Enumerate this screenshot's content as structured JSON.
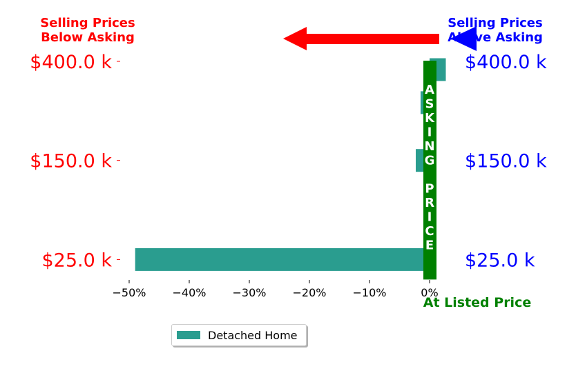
{
  "chart_data": {
    "type": "bar",
    "orientation": "horizontal",
    "title": "",
    "xlabel": "",
    "ylabel": "",
    "xlim": [
      -50,
      0
    ],
    "x_ticks": [
      -50,
      -40,
      -30,
      -20,
      -10,
      0
    ],
    "x_tick_labels": [
      "−50%",
      "−40%",
      "−30%",
      "−20%",
      "−10%",
      "0%"
    ],
    "y_ticks": [
      {
        "label": "$400.0 k",
        "row": 0
      },
      {
        "label": "$150.0 k",
        "row": 3
      },
      {
        "label": "$25.0 k",
        "row": 6
      }
    ],
    "series": [
      {
        "name": "Detached Home",
        "color": "#2a9d8f",
        "bars": [
          {
            "row": 0.25,
            "value": 2.7
          },
          {
            "row": 1.25,
            "value": -1.5
          },
          {
            "row": 3.0,
            "value": -2.3
          },
          {
            "row": 6.0,
            "value": -49.0
          }
        ]
      }
    ],
    "legend": {
      "position": "bottom-left",
      "entries": [
        "Detached Home"
      ]
    },
    "grid": false,
    "annotations": {
      "below_label": "Selling Prices\nBelow Asking",
      "above_label": "Selling Prices\nAbove Asking",
      "asking_price_letters": [
        "A",
        "S",
        "K",
        "I",
        "N",
        "G",
        "",
        "P",
        "R",
        "I",
        "C",
        "E"
      ],
      "at_listed_label": "At Listed Price"
    },
    "colors": {
      "below": "#ff0000",
      "above": "#0000ff",
      "asking": "#008000",
      "bar": "#2a9d8f"
    }
  }
}
